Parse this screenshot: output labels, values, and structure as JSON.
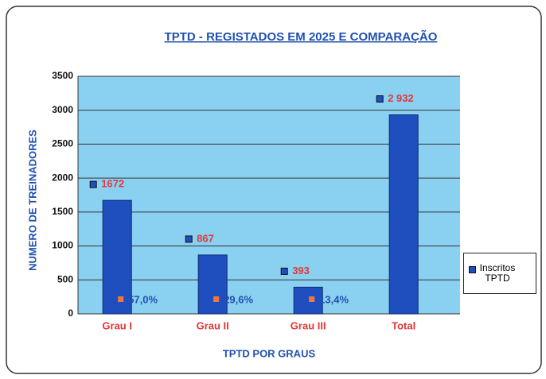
{
  "chart_data": {
    "type": "bar",
    "title": "TPTD - REGISTADOS EM 2025 E COMPARAÇÃO",
    "y_label": "NUMERO DE TREINADORES",
    "x_label": "TPTD POR GRAUS",
    "categories": [
      "Grau I",
      "Grau II",
      "Grau III",
      "Total"
    ],
    "series": [
      {
        "name": "Inscritos TPTD",
        "color": "#1f4fbf",
        "values": [
          1672,
          867,
          393,
          2932
        ],
        "value_labels": [
          "1672",
          "867",
          "393",
          "2 932"
        ]
      }
    ],
    "share_labels": [
      "57,0%",
      "29,6%",
      "13,4%",
      null
    ],
    "ylim": [
      0,
      3500
    ],
    "yticks": [
      0,
      500,
      1000,
      1500,
      2000,
      2500,
      3000,
      3500
    ],
    "grid": true,
    "legend": "right"
  }
}
